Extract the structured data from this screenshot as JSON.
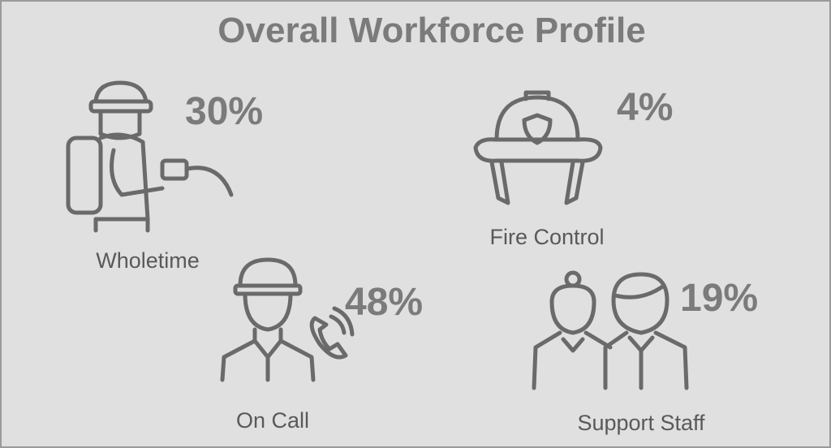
{
  "title": "Overall Workforce Profile",
  "items": [
    {
      "label": "Wholetime",
      "value": "30%"
    },
    {
      "label": "Fire Control",
      "value": "4%"
    },
    {
      "label": "On Call",
      "value": "48%"
    },
    {
      "label": "Support Staff",
      "value": "19%"
    }
  ]
}
